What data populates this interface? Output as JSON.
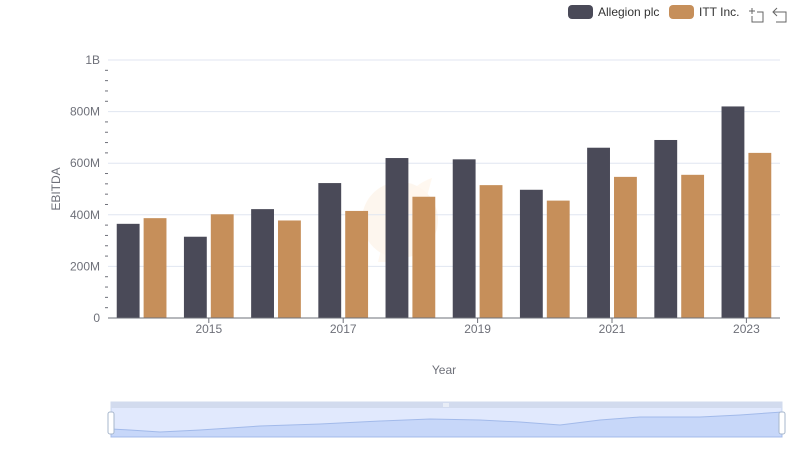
{
  "chart_data": {
    "type": "bar",
    "title": "",
    "xlabel": "Year",
    "ylabel": "EBITDA",
    "ylim": [
      0,
      1000000000
    ],
    "y_ticks": [
      {
        "value": 0,
        "label": "0"
      },
      {
        "value": 200000000,
        "label": "200M"
      },
      {
        "value": 400000000,
        "label": "400M"
      },
      {
        "value": 600000000,
        "label": "600M"
      },
      {
        "value": 800000000,
        "label": "800M"
      },
      {
        "value": 1000000000,
        "label": "1B"
      }
    ],
    "categories": [
      "2014",
      "2015",
      "2016",
      "2017",
      "2018",
      "2019",
      "2020",
      "2021",
      "2022",
      "2023"
    ],
    "x_tick_labels": [
      {
        "category_index": 1,
        "label": "2015"
      },
      {
        "category_index": 3,
        "label": "2017"
      },
      {
        "category_index": 5,
        "label": "2019"
      },
      {
        "category_index": 7,
        "label": "2021"
      },
      {
        "category_index": 9,
        "label": "2023"
      }
    ],
    "series": [
      {
        "name": "Allegion plc",
        "color": "#4a4a58",
        "values": [
          365000000,
          315000000,
          422000000,
          523000000,
          620000000,
          615000000,
          497000000,
          660000000,
          690000000,
          820000000
        ]
      },
      {
        "name": "ITT Inc.",
        "color": "#c68f5a",
        "values": [
          387000000,
          402000000,
          378000000,
          415000000,
          470000000,
          515000000,
          455000000,
          547000000,
          555000000,
          640000000
        ]
      }
    ],
    "grid": true,
    "legend_position": "top-right"
  },
  "toolbox": {
    "zoom_icon": "zoom-icon",
    "restore_icon": "restore-icon"
  },
  "datazoom": {
    "range_start_pct": 0,
    "range_end_pct": 100
  }
}
